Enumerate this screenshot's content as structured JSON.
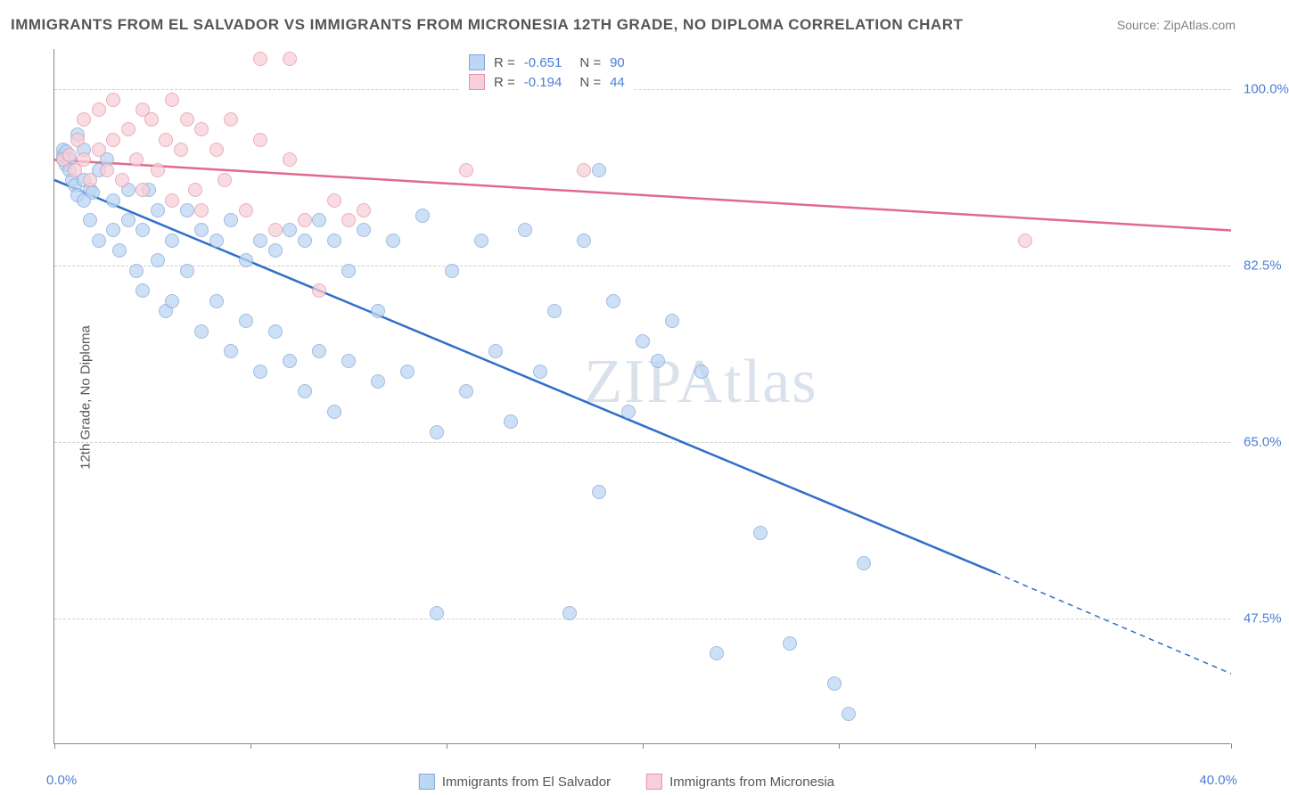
{
  "title": "IMMIGRANTS FROM EL SALVADOR VS IMMIGRANTS FROM MICRONESIA 12TH GRADE, NO DIPLOMA CORRELATION CHART",
  "source": "Source: ZipAtlas.com",
  "watermark": "ZIPAtlas",
  "ylabel": "12th Grade, No Diploma",
  "chart": {
    "type": "scatter",
    "x_range": [
      0,
      40
    ],
    "y_range": [
      35,
      104
    ],
    "x_ticks": [
      0,
      6.67,
      13.33,
      20,
      26.67,
      33.33,
      40
    ],
    "x_tick_labels": {
      "0": "0.0%",
      "40": "40.0%"
    },
    "y_grid": [
      47.5,
      65.0,
      82.5,
      100.0
    ],
    "y_tick_labels": [
      "47.5%",
      "65.0%",
      "82.5%",
      "100.0%"
    ],
    "background": "#ffffff",
    "grid_color": "#d0d0d0",
    "axis_color": "#888888",
    "label_color": "#4a7fd6",
    "title_color": "#555555",
    "marker_radius": 8,
    "series": [
      {
        "name": "Immigrants from El Salvador",
        "fill": "#bdd6f3",
        "stroke": "#7fa8d9",
        "line_color": "#2e6fc9",
        "R": "-0.651",
        "N": "90",
        "trend": {
          "x1": 0,
          "y1": 91,
          "x2": 32,
          "y2": 52,
          "dash_x2": 40,
          "dash_y2": 42
        },
        "points": [
          [
            0.3,
            93
          ],
          [
            0.3,
            93.5
          ],
          [
            0.3,
            94
          ],
          [
            0.4,
            92.5
          ],
          [
            0.4,
            93.8
          ],
          [
            0.5,
            93
          ],
          [
            0.5,
            92
          ],
          [
            0.6,
            91
          ],
          [
            0.7,
            90.5
          ],
          [
            0.8,
            89.5
          ],
          [
            0.8,
            95.5
          ],
          [
            1.0,
            91
          ],
          [
            1.0,
            89
          ],
          [
            1.0,
            94
          ],
          [
            1.2,
            90
          ],
          [
            1.2,
            87
          ],
          [
            1.3,
            89.8
          ],
          [
            1.5,
            92
          ],
          [
            1.5,
            85
          ],
          [
            1.8,
            93
          ],
          [
            2.0,
            89
          ],
          [
            2.0,
            86
          ],
          [
            2.2,
            84
          ],
          [
            2.5,
            87
          ],
          [
            2.5,
            90
          ],
          [
            2.8,
            82
          ],
          [
            3.0,
            86
          ],
          [
            3.0,
            80
          ],
          [
            3.2,
            90
          ],
          [
            3.5,
            83
          ],
          [
            3.5,
            88
          ],
          [
            3.8,
            78
          ],
          [
            4.0,
            85
          ],
          [
            4.0,
            79
          ],
          [
            4.5,
            82
          ],
          [
            4.5,
            88
          ],
          [
            5.0,
            86
          ],
          [
            5.0,
            76
          ],
          [
            5.5,
            85
          ],
          [
            5.5,
            79
          ],
          [
            6.0,
            87
          ],
          [
            6.0,
            74
          ],
          [
            6.5,
            83
          ],
          [
            6.5,
            77
          ],
          [
            7.0,
            85
          ],
          [
            7.0,
            72
          ],
          [
            7.5,
            84
          ],
          [
            7.5,
            76
          ],
          [
            8.0,
            86
          ],
          [
            8.0,
            73
          ],
          [
            8.5,
            85
          ],
          [
            8.5,
            70
          ],
          [
            9.0,
            87
          ],
          [
            9.0,
            74
          ],
          [
            9.5,
            85
          ],
          [
            9.5,
            68
          ],
          [
            10.0,
            82
          ],
          [
            10.0,
            73
          ],
          [
            10.5,
            86
          ],
          [
            11.0,
            78
          ],
          [
            11.0,
            71
          ],
          [
            11.5,
            85
          ],
          [
            12.0,
            72
          ],
          [
            12.5,
            87.5
          ],
          [
            13.0,
            66
          ],
          [
            13.0,
            48
          ],
          [
            13.5,
            82
          ],
          [
            14.0,
            70
          ],
          [
            14.5,
            85
          ],
          [
            15.0,
            74
          ],
          [
            15.5,
            67
          ],
          [
            16.0,
            86
          ],
          [
            16.5,
            72
          ],
          [
            17.0,
            78
          ],
          [
            17.5,
            48
          ],
          [
            18.0,
            85
          ],
          [
            18.5,
            60
          ],
          [
            19.0,
            79
          ],
          [
            19.5,
            68
          ],
          [
            20.0,
            75
          ],
          [
            20.5,
            73
          ],
          [
            21.0,
            77
          ],
          [
            22.0,
            72
          ],
          [
            22.5,
            44
          ],
          [
            24.0,
            56
          ],
          [
            25.0,
            45
          ],
          [
            26.5,
            41
          ],
          [
            27.0,
            38
          ],
          [
            27.5,
            53
          ],
          [
            18.5,
            92
          ]
        ]
      },
      {
        "name": "Immigrants from Micronesia",
        "fill": "#f7cfd9",
        "stroke": "#e395aa",
        "line_color": "#e06a8a",
        "R": "-0.194",
        "N": "44",
        "trend": {
          "x1": 0,
          "y1": 93,
          "x2": 40,
          "y2": 86
        },
        "points": [
          [
            0.3,
            93
          ],
          [
            0.5,
            93.5
          ],
          [
            0.7,
            92
          ],
          [
            0.8,
            95
          ],
          [
            1.0,
            93
          ],
          [
            1.0,
            97
          ],
          [
            1.2,
            91
          ],
          [
            1.5,
            94
          ],
          [
            1.5,
            98
          ],
          [
            1.8,
            92
          ],
          [
            2.0,
            95
          ],
          [
            2.0,
            99
          ],
          [
            2.3,
            91
          ],
          [
            2.5,
            96
          ],
          [
            2.8,
            93
          ],
          [
            3.0,
            98
          ],
          [
            3.0,
            90
          ],
          [
            3.3,
            97
          ],
          [
            3.5,
            92
          ],
          [
            3.8,
            95
          ],
          [
            4.0,
            99
          ],
          [
            4.0,
            89
          ],
          [
            4.3,
            94
          ],
          [
            4.5,
            97
          ],
          [
            4.8,
            90
          ],
          [
            5.0,
            96
          ],
          [
            5.0,
            88
          ],
          [
            5.5,
            94
          ],
          [
            5.8,
            91
          ],
          [
            6.0,
            97
          ],
          [
            6.5,
            88
          ],
          [
            7.0,
            95
          ],
          [
            7.0,
            103
          ],
          [
            7.5,
            86
          ],
          [
            8.0,
            93
          ],
          [
            8.0,
            103
          ],
          [
            8.5,
            87
          ],
          [
            9.0,
            80
          ],
          [
            9.5,
            89
          ],
          [
            10.0,
            87
          ],
          [
            10.5,
            88
          ],
          [
            14.0,
            92
          ],
          [
            18.0,
            92
          ],
          [
            33.0,
            85
          ]
        ]
      }
    ]
  },
  "legend_bottom": [
    {
      "label": "Immigrants from El Salvador",
      "fill": "#bdd6f3",
      "stroke": "#7fa8d9"
    },
    {
      "label": "Immigrants from Micronesia",
      "fill": "#f7cfd9",
      "stroke": "#e395aa"
    }
  ]
}
